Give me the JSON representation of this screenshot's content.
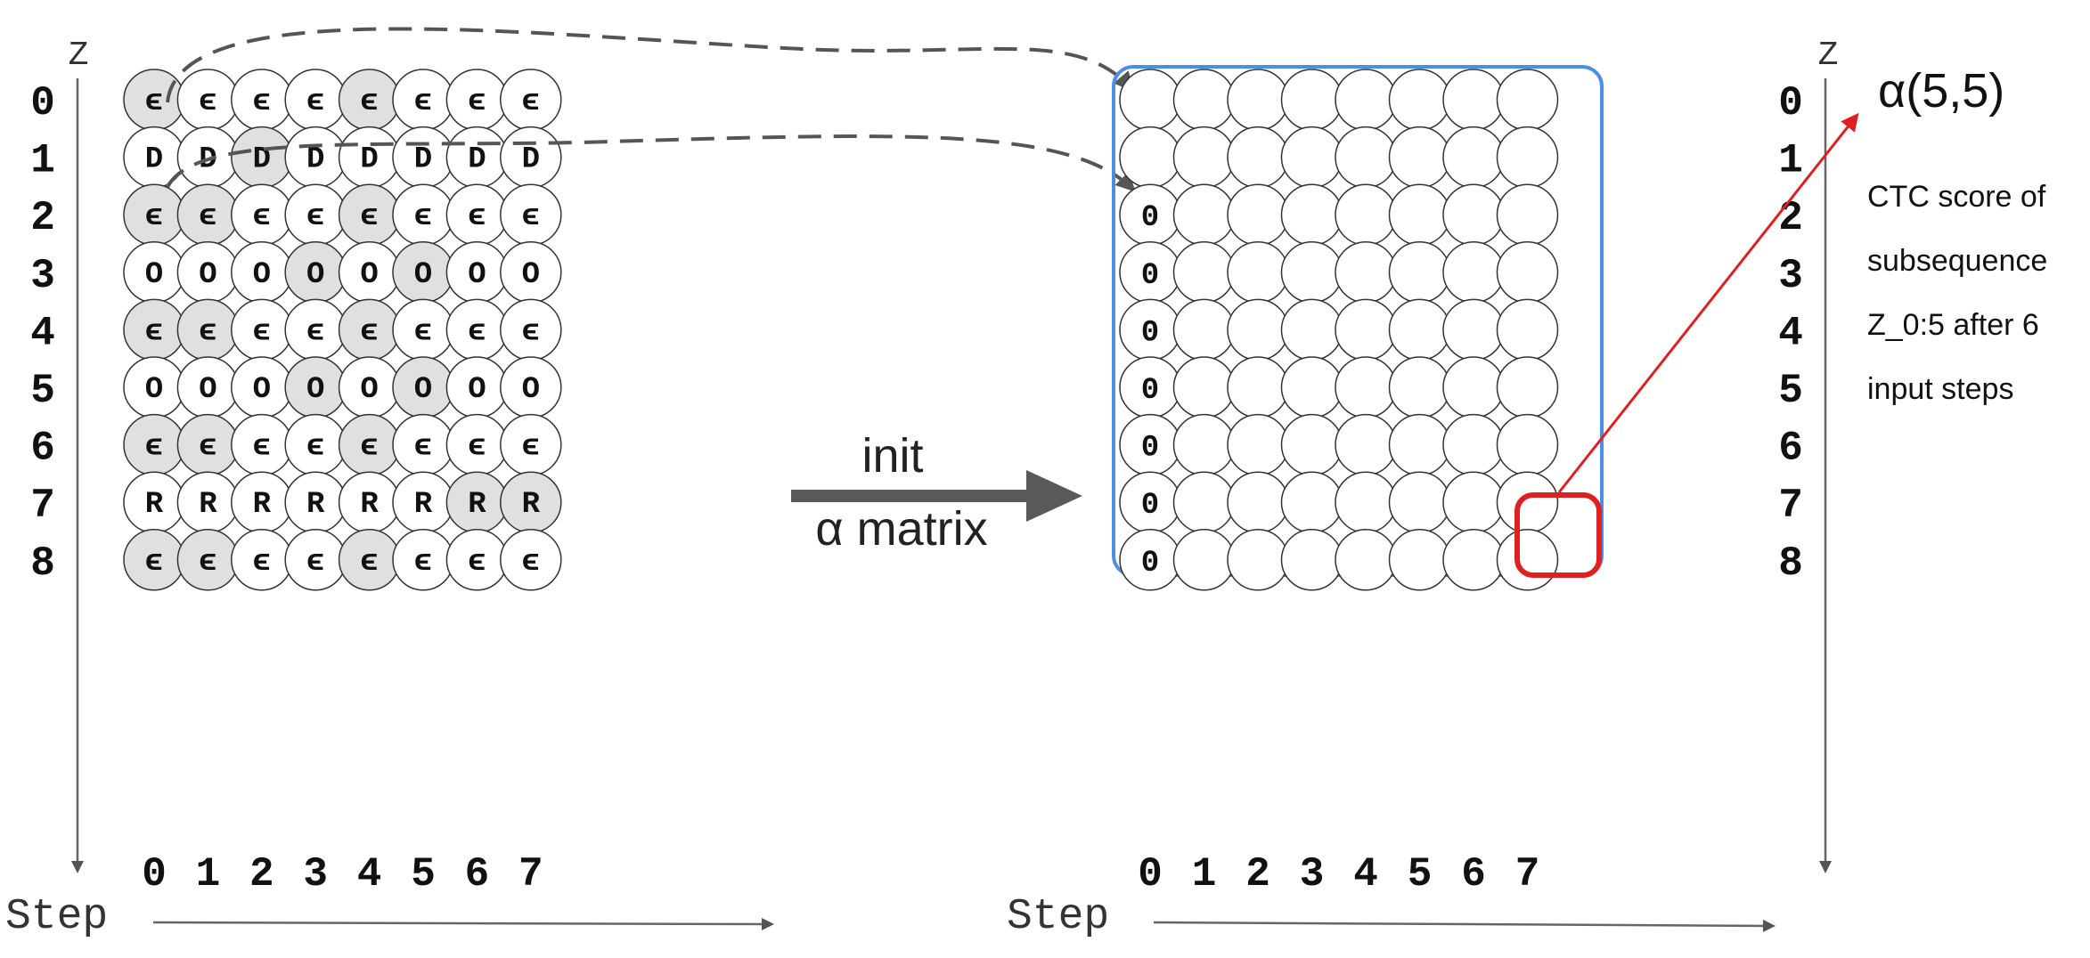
{
  "left": {
    "z_label": "Z",
    "step_label": "Step",
    "row_labels": [
      "0",
      "1",
      "2",
      "3",
      "4",
      "5",
      "6",
      "7",
      "8"
    ],
    "col_labels": [
      "0",
      "1",
      "2",
      "3",
      "4",
      "5",
      "6",
      "7"
    ],
    "rows": [
      {
        "symbol": "ϵ",
        "shaded": [
          0,
          4
        ]
      },
      {
        "symbol": "D",
        "shaded": [
          2
        ]
      },
      {
        "symbol": "ϵ",
        "shaded": [
          0,
          1,
          4
        ]
      },
      {
        "symbol": "O",
        "shaded": [
          3,
          5
        ]
      },
      {
        "symbol": "ϵ",
        "shaded": [
          0,
          1,
          4
        ]
      },
      {
        "symbol": "O",
        "shaded": [
          3,
          5
        ]
      },
      {
        "symbol": "ϵ",
        "shaded": [
          0,
          1,
          4
        ]
      },
      {
        "symbol": "R",
        "shaded": [
          6,
          7
        ]
      },
      {
        "symbol": "ϵ",
        "shaded": [
          0,
          1,
          4
        ]
      }
    ],
    "shade_color": "#e0e0e0"
  },
  "middle": {
    "line1": "init",
    "line2": "α matrix"
  },
  "right": {
    "z_label": "Z",
    "step_label": "Step",
    "row_labels": [
      "0",
      "1",
      "2",
      "3",
      "4",
      "5",
      "6",
      "7",
      "8"
    ],
    "col_labels": [
      "0",
      "1",
      "2",
      "3",
      "4",
      "5",
      "6",
      "7"
    ],
    "zero_text": "0",
    "zero_rows": [
      2,
      3,
      4,
      5,
      6,
      7,
      8
    ],
    "highlight_cell": {
      "row": 5,
      "col": 5
    },
    "box_color": "#4a8ee6",
    "highlight_color": "#e02020"
  },
  "annotation": {
    "title": "α(5,5)",
    "lines": [
      "CTC score of",
      "subsequence",
      "Z_0:5  after 6",
      "input steps"
    ]
  }
}
